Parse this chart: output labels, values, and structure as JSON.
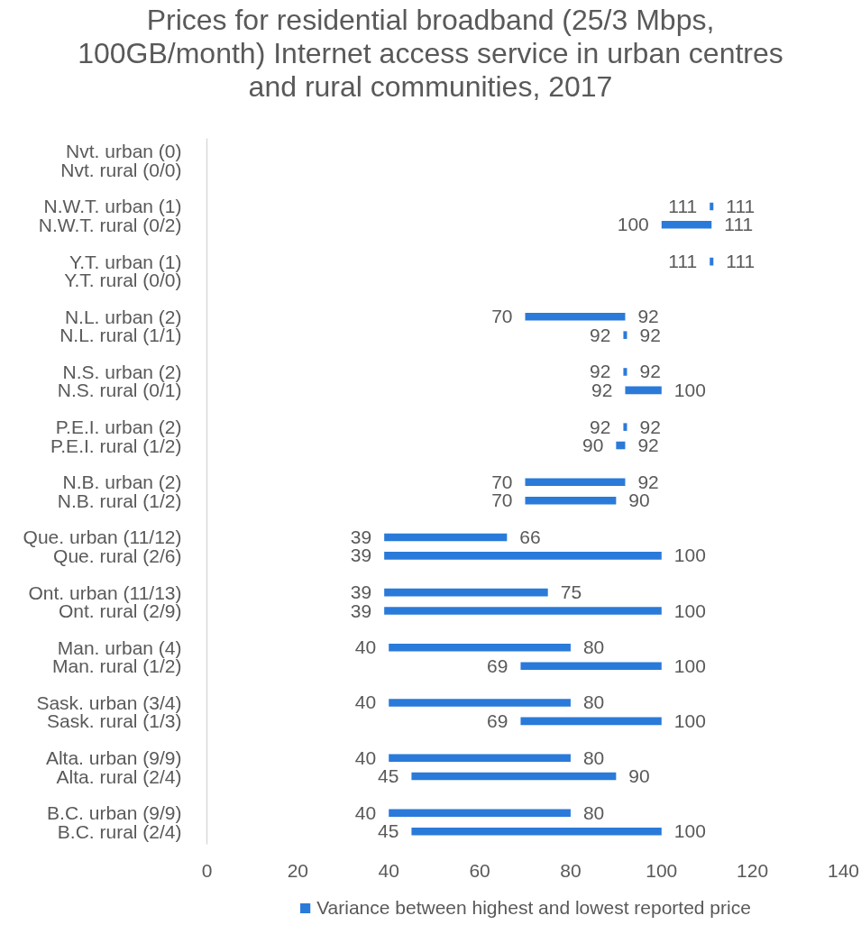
{
  "chart_data": {
    "type": "bar",
    "orientation": "horizontal",
    "title": "Prices for residential broadband (25/3 Mbps, 100GB/month) Internet access service in urban centres and rural communities, 2017",
    "categories": [
      "Nvt. urban (0)",
      "Nvt. rural (0/0)",
      null,
      "N.W.T. urban (1)",
      "N.W.T. rural (0/2)",
      null,
      "Y.T. urban (1)",
      "Y.T. rural (0/0)",
      null,
      "N.L. urban (2)",
      "N.L. rural (1/1)",
      null,
      "N.S. urban (2)",
      "N.S. rural (0/1)",
      null,
      "P.E.I. urban (2)",
      "P.E.I. rural (1/2)",
      null,
      "N.B. urban (2)",
      "N.B. rural (1/2)",
      null,
      "Que. urban (11/12)",
      "Que. rural (2/6)",
      null,
      "Ont. urban (11/13)",
      "Ont. rural (2/9)",
      null,
      "Man. urban (4)",
      "Man. rural (1/2)",
      null,
      "Sask. urban (3/4)",
      "Sask. rural (1/3)",
      null,
      "Alta. urban (9/9)",
      "Alta. rural (2/4)",
      null,
      "B.C. urban (9/9)",
      "B.C. rural (2/4)"
    ],
    "series": [
      {
        "name": "Variance between highest and lowest reported price",
        "color": "#2a7ad9",
        "base": [
          null,
          null,
          null,
          110.6,
          100,
          null,
          110.6,
          null,
          null,
          70,
          91.6,
          null,
          91.6,
          92,
          null,
          91.6,
          90,
          null,
          70,
          70,
          null,
          39,
          39,
          null,
          39,
          39,
          null,
          40,
          69,
          null,
          40,
          69,
          null,
          40,
          45,
          null,
          40,
          45
        ],
        "values": [
          null,
          null,
          null,
          0.8,
          11,
          null,
          0.8,
          null,
          null,
          22,
          0.8,
          null,
          0.8,
          8,
          null,
          0.8,
          2,
          null,
          22,
          20,
          null,
          27,
          61,
          null,
          36,
          61,
          null,
          40,
          31,
          null,
          40,
          31,
          null,
          40,
          45,
          null,
          40,
          55
        ]
      }
    ],
    "xlim": [
      0,
      140
    ],
    "xticks": [
      0,
      20,
      40,
      60,
      80,
      100,
      120,
      140
    ],
    "legend": "bottom",
    "annotations": [
      {
        "text": "111",
        "x": 110.6,
        "y": "N.W.T. urban (1)"
      },
      {
        "text": "111",
        "x": 111.4,
        "y": "N.W.T. urban (1)"
      },
      {
        "text": "100",
        "x": 100,
        "y": "N.W.T. rural (0/2)"
      },
      {
        "text": "111",
        "x": 111,
        "y": "N.W.T. rural (0/2)"
      },
      {
        "text": "111",
        "x": 110.6,
        "y": "Y.T. urban (1)"
      },
      {
        "text": "111",
        "x": 111.4,
        "y": "Y.T. urban (1)"
      },
      {
        "text": "70",
        "x": 70,
        "y": "N.L. urban (2)"
      },
      {
        "text": "92",
        "x": 92,
        "y": "N.L. urban (2)"
      },
      {
        "text": "92",
        "x": 91.6,
        "y": "N.L. rural (1/1)"
      },
      {
        "text": "92",
        "x": 92.4,
        "y": "N.L. rural (1/1)"
      },
      {
        "text": "92",
        "x": 91.6,
        "y": "N.S. urban (2)"
      },
      {
        "text": "92",
        "x": 92.4,
        "y": "N.S. urban (2)"
      },
      {
        "text": "92",
        "x": 92,
        "y": "N.S. rural (0/1)"
      },
      {
        "text": "100",
        "x": 100,
        "y": "N.S. rural (0/1)"
      },
      {
        "text": "92",
        "x": 91.6,
        "y": "P.E.I. urban (2)"
      },
      {
        "text": "92",
        "x": 92.4,
        "y": "P.E.I. urban (2)"
      },
      {
        "text": "90",
        "x": 90,
        "y": "P.E.I. rural (1/2)"
      },
      {
        "text": "92",
        "x": 92,
        "y": "P.E.I. rural (1/2)"
      },
      {
        "text": "70",
        "x": 70,
        "y": "N.B. urban (2)"
      },
      {
        "text": "92",
        "x": 92,
        "y": "N.B. urban (2)"
      },
      {
        "text": "70",
        "x": 70,
        "y": "N.B. rural (1/2)"
      },
      {
        "text": "90",
        "x": 90,
        "y": "N.B. rural (1/2)"
      },
      {
        "text": "39",
        "x": 39,
        "y": "Que. urban (11/12)"
      },
      {
        "text": "66",
        "x": 66,
        "y": "Que. urban (11/12)"
      },
      {
        "text": "39",
        "x": 39,
        "y": "Que. rural (2/6)"
      },
      {
        "text": "100",
        "x": 100,
        "y": "Que. rural (2/6)"
      },
      {
        "text": "39",
        "x": 39,
        "y": "Ont. urban (11/13)"
      },
      {
        "text": "75",
        "x": 75,
        "y": "Ont. urban (11/13)"
      },
      {
        "text": "39",
        "x": 39,
        "y": "Ont. rural (2/9)"
      },
      {
        "text": "100",
        "x": 100,
        "y": "Ont. rural (2/9)"
      },
      {
        "text": "40",
        "x": 40,
        "y": "Man. urban (4)"
      },
      {
        "text": "80",
        "x": 80,
        "y": "Man. urban (4)"
      },
      {
        "text": "69",
        "x": 69,
        "y": "Man. rural (1/2)"
      },
      {
        "text": "100",
        "x": 100,
        "y": "Man. rural (1/2)"
      },
      {
        "text": "40",
        "x": 40,
        "y": "Sask. urban (3/4)"
      },
      {
        "text": "80",
        "x": 80,
        "y": "Sask. urban (3/4)"
      },
      {
        "text": "69",
        "x": 69,
        "y": "Sask. rural (1/3)"
      },
      {
        "text": "100",
        "x": 100,
        "y": "Sask. rural (1/3)"
      },
      {
        "text": "40",
        "x": 40,
        "y": "Alta. urban (9/9)"
      },
      {
        "text": "80",
        "x": 80,
        "y": "Alta. urban (9/9)"
      },
      {
        "text": "45",
        "x": 45,
        "y": "Alta. rural (2/4)"
      },
      {
        "text": "90",
        "x": 90,
        "y": "Alta. rural (2/4)"
      },
      {
        "text": "40",
        "x": 40,
        "y": "B.C. urban (9/9)"
      },
      {
        "text": "80",
        "x": 80,
        "y": "B.C. urban (9/9)"
      },
      {
        "text": "45",
        "x": 45,
        "y": "B.C. rural (2/4)"
      },
      {
        "text": "100",
        "x": 100,
        "y": "B.C. rural (2/4)"
      }
    ]
  }
}
